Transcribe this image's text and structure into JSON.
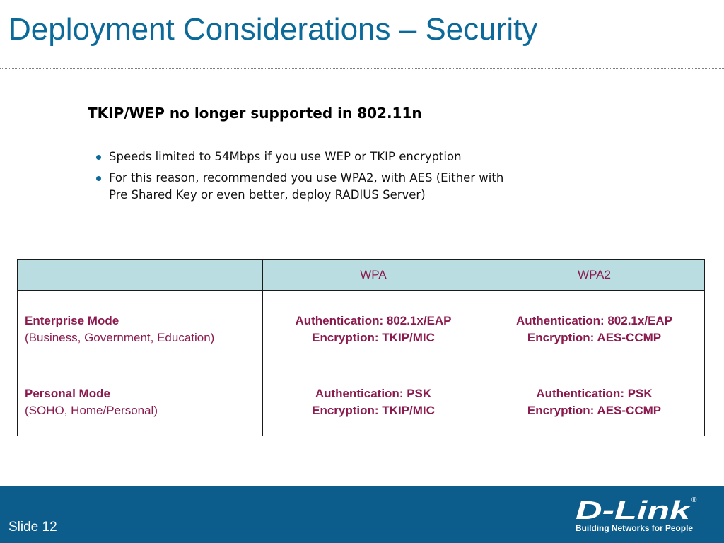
{
  "slide": {
    "title": "Deployment Considerations – Security",
    "subheading": "TKIP/WEP no longer supported in 802.11n",
    "bullets": [
      {
        "lines": [
          "Speeds limited to 54Mbps if you use WEP or TKIP encryption"
        ]
      },
      {
        "lines": [
          "For this reason, recommended you use WPA2, with AES (Either with",
          "Pre Shared Key or even better, deploy RADIUS Server)"
        ]
      }
    ],
    "footer": {
      "slide_label": "Slide 12"
    },
    "logo": {
      "brand": "D-Link",
      "tagline": "Building Networks for People",
      "registered_mark": "®"
    }
  },
  "table": {
    "headers": [
      "",
      "WPA",
      "WPA2"
    ],
    "rows": [
      {
        "mode": "Enterprise Mode",
        "description": "(Business, Government, Education)",
        "wpa": [
          "Authentication: 802.1x/EAP",
          "Encryption: TKIP/MIC"
        ],
        "wpa2": [
          "Authentication: 802.1x/EAP",
          "Encryption: AES-CCMP"
        ]
      },
      {
        "mode": "Personal Mode",
        "description": "(SOHO, Home/Personal)",
        "wpa": [
          "Authentication: PSK",
          "Encryption: TKIP/MIC"
        ],
        "wpa2": [
          "Authentication: PSK",
          "Encryption: AES-CCMP"
        ]
      }
    ]
  },
  "colors": {
    "title": "#0b6a9a",
    "accent": "#8b1a4f",
    "table_header_bg": "#b9dde1",
    "footer_bg": "#0c5d8c"
  }
}
